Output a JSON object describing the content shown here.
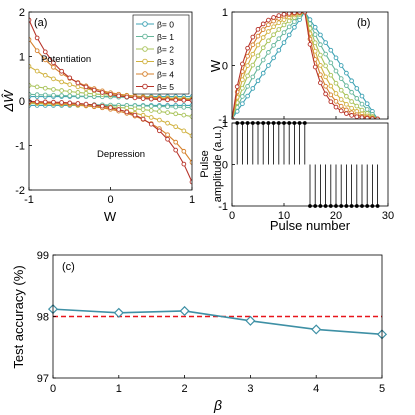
{
  "chart_data": [
    {
      "panel": "(a)",
      "type": "line",
      "xlabel": "W",
      "ylabel": "ΔŴ",
      "xlim": [
        -1,
        1
      ],
      "ylim": [
        -2,
        2
      ],
      "xticks": [
        "-1",
        "0",
        "1"
      ],
      "yticks": [
        "-2",
        "-1",
        "0",
        "1",
        "2"
      ],
      "legend_position": "top-right",
      "annotations": [
        "Potentiation",
        "Depression"
      ],
      "series": [
        {
          "name": "β= 0",
          "color": "#3fa3b5",
          "potentiation": {
            "x": [
              -1,
              1
            ],
            "y": [
              0.1,
              0.1
            ]
          },
          "depression": {
            "x": [
              -1,
              1
            ],
            "y": [
              -0.1,
              -0.1
            ]
          }
        },
        {
          "name": "β= 1",
          "color": "#67b79c",
          "potentiation": {
            "x": [
              -1,
              1
            ],
            "y": [
              0.15,
              0.055
            ]
          },
          "depression": {
            "x": [
              -1,
              1
            ],
            "y": [
              -0.055,
              -0.15
            ]
          }
        },
        {
          "name": "β= 2",
          "color": "#a9c35a",
          "potentiation": {
            "x": [
              -1,
              1
            ],
            "y": [
              0.35,
              0.05
            ]
          },
          "depression": {
            "x": [
              -1,
              1
            ],
            "y": [
              -0.05,
              -0.35
            ]
          }
        },
        {
          "name": "β= 3",
          "color": "#d1b23f",
          "potentiation": {
            "x": [
              -1,
              1
            ],
            "y": [
              0.78,
              0.04
            ]
          },
          "depression": {
            "x": [
              -1,
              1
            ],
            "y": [
              -0.04,
              -0.78
            ]
          }
        },
        {
          "name": "β= 4",
          "color": "#d6822e",
          "potentiation": {
            "x": [
              -1,
              1
            ],
            "y": [
              1.38,
              0.025
            ]
          },
          "depression": {
            "x": [
              -1,
              1
            ],
            "y": [
              -0.025,
              -1.38
            ]
          }
        },
        {
          "name": "β= 5",
          "color": "#b8342a",
          "potentiation": {
            "x": [
              -1,
              1
            ],
            "y": [
              1.82,
              0.012
            ]
          },
          "depression": {
            "x": [
              -1,
              1
            ],
            "y": [
              -0.012,
              -1.82
            ]
          }
        }
      ]
    },
    {
      "panel": "(b)",
      "type": "line",
      "ylabel": "W",
      "xlim": [
        0,
        30
      ],
      "ylim": [
        -1,
        1
      ],
      "yticks": [
        "-1",
        "0",
        "1"
      ],
      "pulses_per_phase": 14,
      "betas": [
        0,
        1,
        2,
        3,
        4,
        5
      ],
      "colors": [
        "#3fa3b5",
        "#67b79c",
        "#a9c35a",
        "#d1b23f",
        "#d6822e",
        "#b8342a"
      ]
    },
    {
      "panel": "(b)",
      "type": "stem",
      "xlabel": "Pulse number",
      "ylabel": [
        "Pulse",
        "amplitude (a.u.)"
      ],
      "xlim": [
        0,
        30
      ],
      "ylim": [
        -1,
        1
      ],
      "xticks": [
        "0",
        "10",
        "20",
        "30"
      ],
      "yticks": [
        "-1",
        "0",
        "1"
      ],
      "pulses": [
        {
          "n_from": 1,
          "n_to": 14,
          "amplitude": 1
        },
        {
          "n_from": 15,
          "n_to": 28,
          "amplitude": -1
        }
      ]
    },
    {
      "panel": "(c)",
      "type": "line",
      "xlabel": "β",
      "ylabel": "Test accuracy (%)",
      "xlim": [
        0,
        5
      ],
      "ylim": [
        97,
        99
      ],
      "xticks": [
        "0",
        "1",
        "2",
        "3",
        "4",
        "5"
      ],
      "yticks": [
        "97",
        "98",
        "99"
      ],
      "x": [
        0,
        1,
        2,
        3,
        4,
        5
      ],
      "y": [
        98.12,
        98.06,
        98.09,
        97.93,
        97.79,
        97.71
      ],
      "reference_line": 98.0,
      "reference_color": "#e8151b",
      "color": "#3e90a5"
    }
  ]
}
